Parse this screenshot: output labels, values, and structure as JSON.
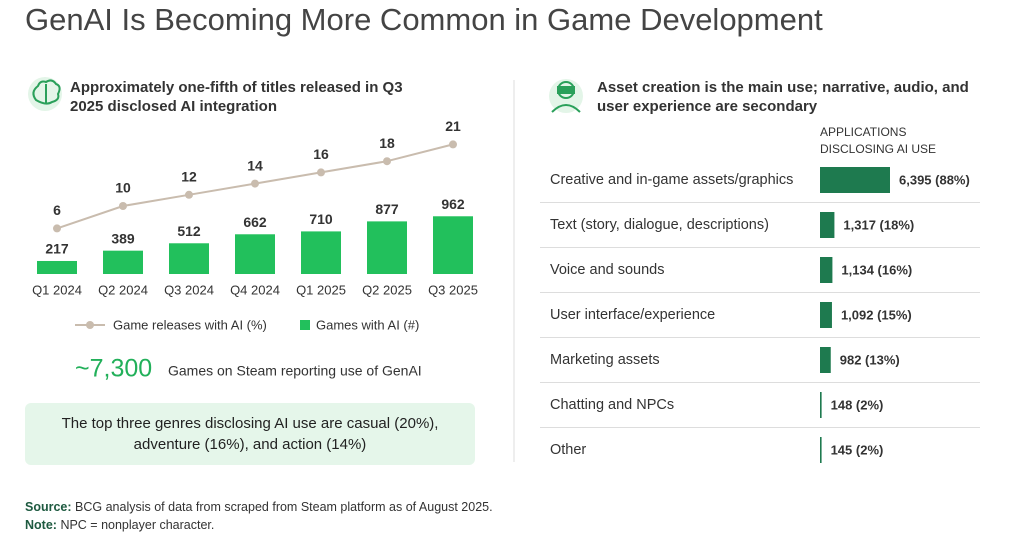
{
  "title": "GenAI Is Becoming More Common in Game Development",
  "chart_data": [
    {
      "type": "combo",
      "title": "Approximately one-fifth of titles released in Q3 2025 disclosed AI integration",
      "categories": [
        "Q1 2024",
        "Q2 2024",
        "Q3 2024",
        "Q4 2024",
        "Q1 2025",
        "Q2 2025",
        "Q3 2025"
      ],
      "series": [
        {
          "name": "Game releases with AI (%)",
          "type": "line",
          "axis": "y2",
          "color": "#c9bcae",
          "values": [
            6,
            10,
            12,
            14,
            16,
            18,
            21
          ]
        },
        {
          "name": "Games with AI (#)",
          "type": "bar",
          "color": "#22c05c",
          "values": [
            217,
            389,
            512,
            662,
            710,
            877,
            962
          ]
        }
      ]
    },
    {
      "type": "bar",
      "title": "Asset creation is the main use; narrative, audio, and user experience are secondary",
      "value_header": "APPLICATIONS DISCLOSING AI USE",
      "orientation": "horizontal",
      "color": "#1e7a4f",
      "categories": [
        "Creative and in-game assets/graphics",
        "Text (story, dialogue, descriptions)",
        "Voice and sounds",
        "User interface/experience",
        "Marketing assets",
        "Chatting and NPCs",
        "Other"
      ],
      "values": [
        6395,
        1317,
        1134,
        1092,
        982,
        148,
        145
      ],
      "value_labels": [
        "6,395 (88%)",
        "1,317 (18%)",
        "1,134 (16%)",
        "1,092 (15%)",
        "982 (13%)",
        "148 (2%)",
        "145 (2%)"
      ]
    }
  ],
  "stat": {
    "value": "~7,300",
    "label": "Games on Steam reporting use of GenAI"
  },
  "callout": "The top three genres disclosing AI use are casual (20%), adventure (16%), and action (14%)",
  "source": {
    "label": "Source:",
    "text": "BCG analysis of data from scraped from Steam platform as of August 2025."
  },
  "note": {
    "label": "Note:",
    "text": "NPC = nonplayer character."
  }
}
